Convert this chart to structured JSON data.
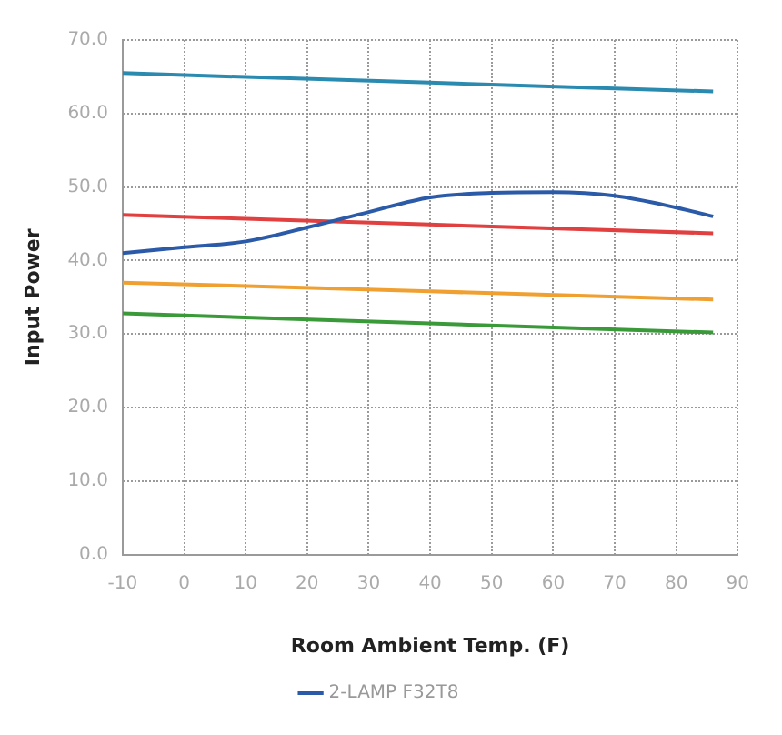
{
  "chart_data": {
    "type": "line",
    "xlabel": "Room Ambient Temp. (F)",
    "ylabel": "Input Power",
    "xlim": [
      -10,
      90
    ],
    "xticks": [
      -10,
      0,
      10,
      20,
      30,
      40,
      50,
      60,
      70,
      80,
      90
    ],
    "ylim": [
      0,
      70
    ],
    "yticks": [
      {
        "value": 0,
        "label": "0.0"
      },
      {
        "value": 10,
        "label": "10.0"
      },
      {
        "value": 20,
        "label": "20.0"
      },
      {
        "value": 30,
        "label": "30.0"
      },
      {
        "value": 40,
        "label": "40.0"
      },
      {
        "value": 50,
        "label": "50.0"
      },
      {
        "value": 60,
        "label": "60.0"
      },
      {
        "value": 70,
        "label": "70.0"
      }
    ],
    "grid": true,
    "legend": "bottom",
    "marker": "none",
    "line_style": "solid",
    "series": [
      {
        "name": "2-LAMP F32T8",
        "color": "#2a5aa8",
        "x": [
          -10,
          0,
          10,
          20,
          30,
          40,
          50,
          60,
          70,
          80,
          86
        ],
        "values": [
          41,
          41.8,
          42.6,
          44.5,
          46.6,
          48.6,
          49.2,
          49.3,
          48.8,
          47.2,
          46
        ]
      },
      {
        "color": "#3a9a3a",
        "x": [
          -10,
          86
        ],
        "values": [
          32.8,
          30.2
        ]
      },
      {
        "color": "#f0a030",
        "x": [
          -10,
          86
        ],
        "values": [
          37,
          34.7
        ]
      },
      {
        "color": "#e04040",
        "x": [
          -10,
          86
        ],
        "values": [
          46.2,
          43.7
        ]
      },
      {
        "color": "#2a8ab0",
        "x": [
          -10,
          86
        ],
        "values": [
          65.5,
          63
        ]
      }
    ]
  }
}
